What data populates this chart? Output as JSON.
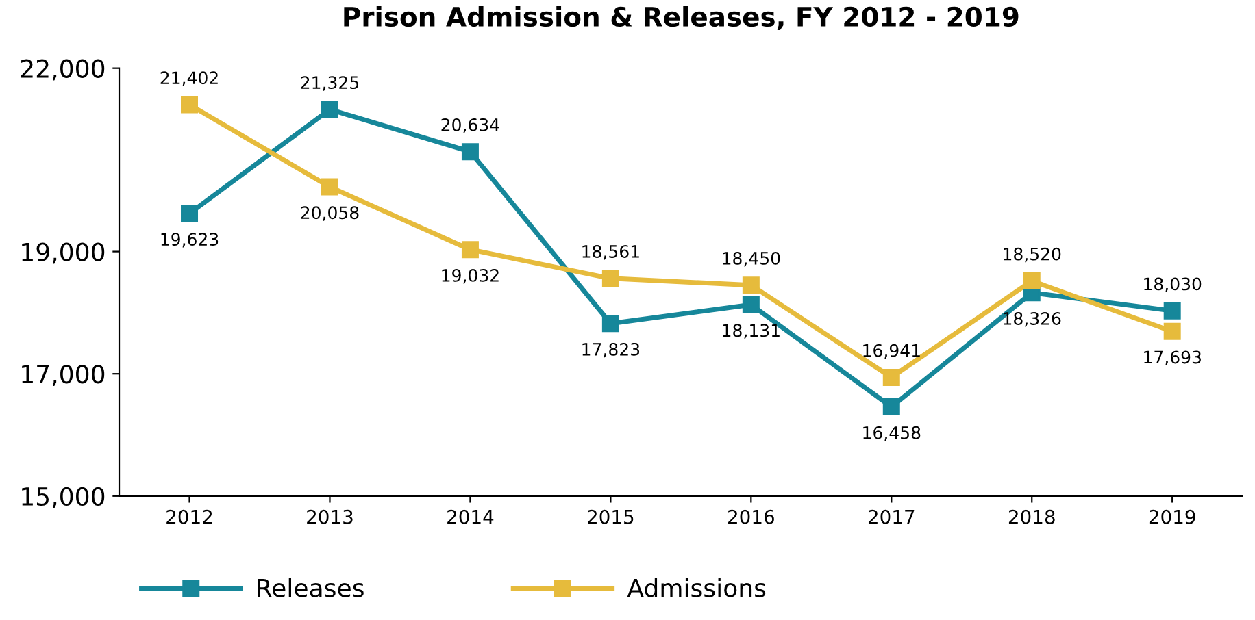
{
  "chart_data": {
    "type": "line",
    "title": "Prison Admission & Releases, FY 2012 - 2019",
    "categories": [
      "2012",
      "2013",
      "2014",
      "2015",
      "2016",
      "2017",
      "2018",
      "2019"
    ],
    "series": [
      {
        "name": "Releases",
        "color": "#16879a",
        "values": [
          19623,
          21325,
          20634,
          17823,
          18131,
          16458,
          18326,
          18030
        ],
        "value_labels": [
          "19,623",
          "21,325",
          "20,634",
          "17,823",
          "18,131",
          "16,458",
          "18,326",
          "18,030"
        ]
      },
      {
        "name": "Admissions",
        "color": "#e6bb3c",
        "values": [
          21402,
          20058,
          19032,
          18561,
          18450,
          16941,
          18520,
          17693
        ],
        "value_labels": [
          "21,402",
          "20,058",
          "19,032",
          "18,561",
          "18,450",
          "16,941",
          "18,520",
          "17,693"
        ]
      }
    ],
    "ylim": [
      15000,
      22000
    ],
    "yticks": [
      {
        "value": 15000,
        "label": "15,000"
      },
      {
        "value": 17000,
        "label": "17,000"
      },
      {
        "value": 19000,
        "label": "19,000"
      },
      {
        "value": 22000,
        "label": "22,000"
      }
    ],
    "marker": "square",
    "line_style": "solid",
    "grid": false,
    "legend": "bottom"
  }
}
